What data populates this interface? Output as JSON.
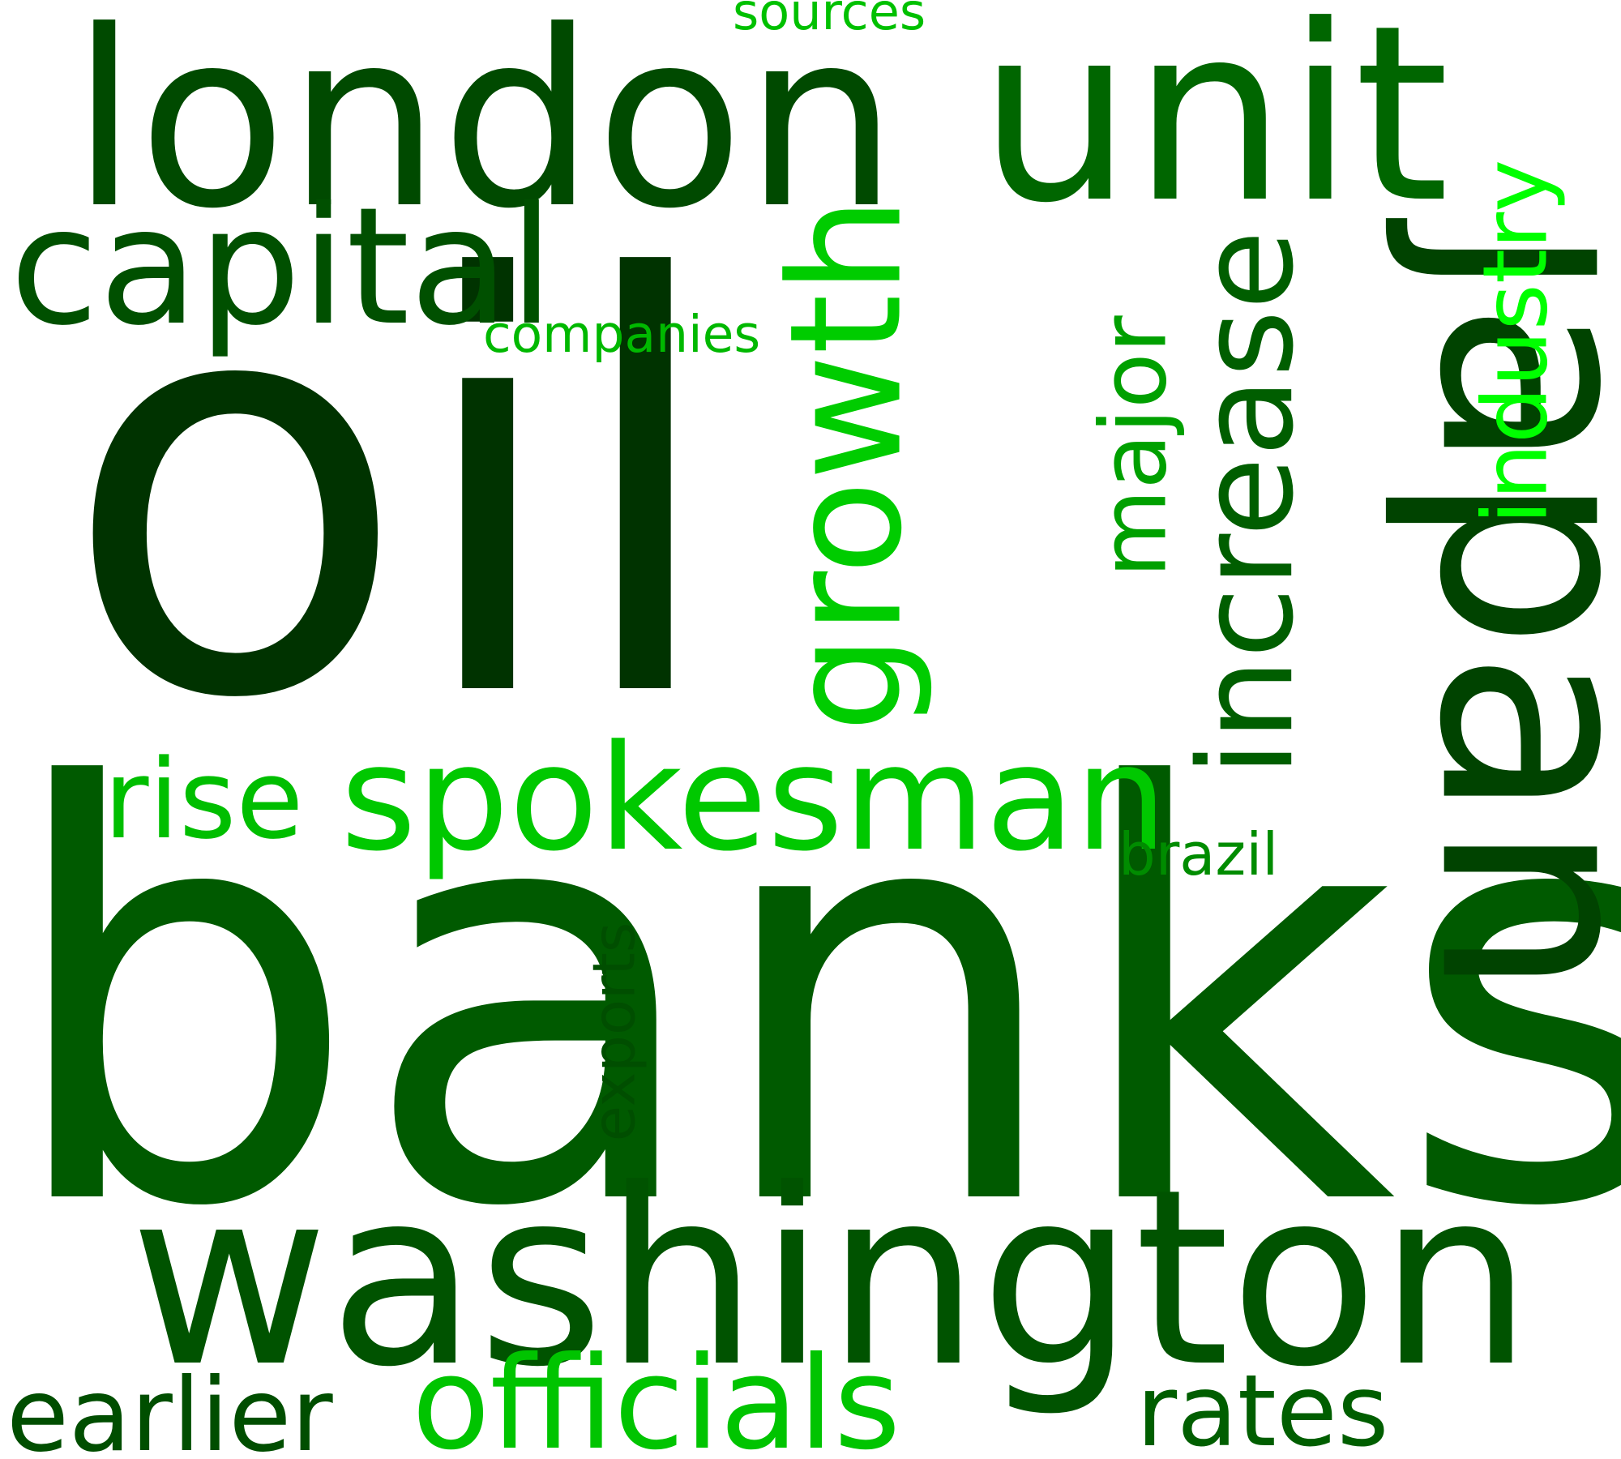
{
  "words": {
    "oil": {
      "text": "oil",
      "color": "#003300"
    },
    "banks": {
      "text": "banks",
      "color": "#005a00"
    },
    "london": {
      "text": "london",
      "color": "#004a00"
    },
    "unit": {
      "text": "unit",
      "color": "#006600"
    },
    "japan": {
      "text": "japan",
      "color": "#004300"
    },
    "washington": {
      "text": "washington",
      "color": "#005300"
    },
    "capital": {
      "text": "capital",
      "color": "#005000"
    },
    "growth": {
      "text": "growth",
      "color": "#00cc00"
    },
    "increase": {
      "text": "increase",
      "color": "#005e00"
    },
    "major": {
      "text": "major",
      "color": "#00a000"
    },
    "industry": {
      "text": "industry",
      "color": "#00ff00"
    },
    "spokesman": {
      "text": "spokesman",
      "color": "#00c800"
    },
    "rise": {
      "text": "rise",
      "color": "#00be00"
    },
    "companies": {
      "text": "companies",
      "color": "#00b800"
    },
    "brazil": {
      "text": "brazil",
      "color": "#008c00"
    },
    "exports": {
      "text": "exports",
      "color": "#004e00"
    },
    "officials": {
      "text": "officials",
      "color": "#00c400"
    },
    "earlier": {
      "text": "earlier",
      "color": "#004e00"
    },
    "rates": {
      "text": "rates",
      "color": "#005e00"
    },
    "sources": {
      "text": "sources",
      "color": "#00c000"
    }
  }
}
